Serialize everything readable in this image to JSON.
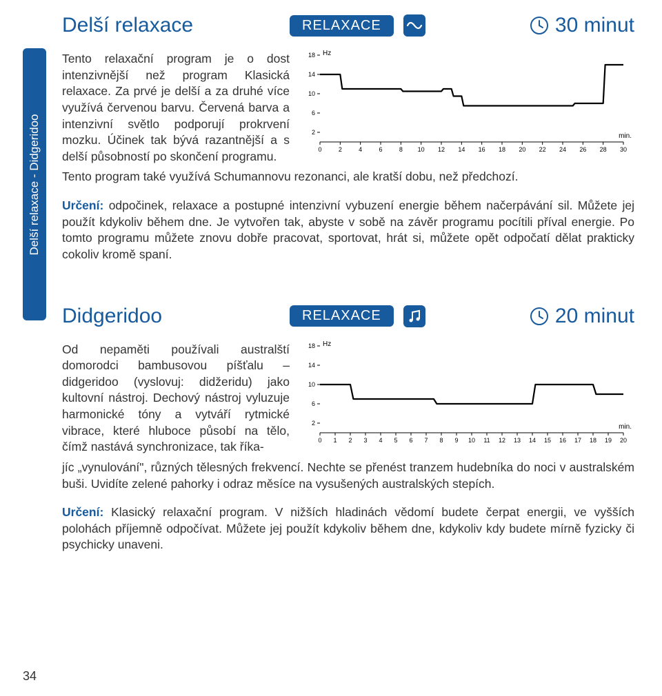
{
  "sideTab": "Delší relaxace - Didgeridoo",
  "pageNumber": "34",
  "colors": {
    "brand": "#175a9d",
    "text": "#333333",
    "chartLine": "#000000",
    "chartAxis": "#000000"
  },
  "program1": {
    "title": "Delší relaxace",
    "badge": "RELAXACE",
    "typeIcon": "wave-icon",
    "duration": "30 minut",
    "intro": "Tento relaxační program je o dost intenzivnější než program Klasická relaxace. Za prvé je delší a za druhé více využívá červenou barvu. Červená barva a intenzivní světlo podporují prokrvení mozku. Účinek tak bývá razantnější a s delší působností po skončení programu.",
    "flow": "Tento program také využívá Schumannovu rezonanci, ale kratší dobu, než předchozí.",
    "urceniLabel": "Určení:",
    "urceniText": " odpočinek, relaxace a postupné intenzivní vybuzení energie během načerpávání sil. Můžete jej použít kdykoliv během dne. Je vytvořen tak, abyste v sobě na závěr programu pocítili příval energie. Po tomto programu můžete znovu dobře pracovat, sportovat, hrát si, můžete opět odpočatí dělat prakticky cokoliv kromě spaní.",
    "chart": {
      "yLabel": "Hz",
      "xLabel": "min.",
      "yTicks": [
        2,
        6,
        10,
        14,
        18
      ],
      "yRange": [
        0,
        18
      ],
      "xTicks": [
        0,
        2,
        4,
        6,
        8,
        10,
        12,
        14,
        16,
        18,
        20,
        22,
        24,
        26,
        28,
        30
      ],
      "xRange": [
        0,
        30
      ],
      "points": [
        [
          0,
          14
        ],
        [
          2,
          14
        ],
        [
          2.2,
          11
        ],
        [
          8,
          11
        ],
        [
          8.2,
          10.5
        ],
        [
          12,
          10.5
        ],
        [
          12.2,
          11
        ],
        [
          13,
          11
        ],
        [
          13.2,
          9.5
        ],
        [
          14,
          9.5
        ],
        [
          14.2,
          7.5
        ],
        [
          25,
          7.5
        ],
        [
          25.2,
          8
        ],
        [
          28,
          8
        ],
        [
          28.2,
          16
        ],
        [
          30,
          16
        ]
      ],
      "lineColor": "#000000",
      "lineWidth": 2.2,
      "tickFont": 9
    }
  },
  "program2": {
    "title": "Didgeridoo",
    "badge": "RELAXACE",
    "typeIcon": "music-icon",
    "duration": "20 minut",
    "intro": "Od nepaměti používali australští domorodci bambusovou píšťalu – didgeridoo (vyslovuj: didžeridu) jako kultovní nástroj. Dechový nástroj vyluzuje harmonické tóny a vytváří rytmické vibrace, které hluboce působí na tělo, čímž nastává synchronizace, tak říka-",
    "flow": "jíc „vynulování\", různých tělesných frekvencí. Nechte se přenést tranzem hudebníka do noci v australském buši. Uvidíte zelené pahorky i odraz měsíce na vysušených australských stepích.",
    "urceniLabel": "Určení:",
    "urceniText": " Klasický relaxační program. V nižších hladinách vědomí budete čerpat energii, ve vyšších polohách příjemně odpočívat. Můžete jej použít kdykoliv během dne, kdykoliv kdy budete mírně fyzicky či psychicky unaveni.",
    "chart": {
      "yLabel": "Hz",
      "xLabel": "min.",
      "yTicks": [
        2,
        6,
        10,
        14,
        18
      ],
      "yRange": [
        0,
        18
      ],
      "xTicks": [
        0,
        1,
        2,
        3,
        4,
        5,
        6,
        7,
        8,
        9,
        10,
        11,
        12,
        13,
        14,
        15,
        16,
        17,
        18,
        19,
        20
      ],
      "xRange": [
        0,
        20
      ],
      "points": [
        [
          0,
          10
        ],
        [
          2,
          10
        ],
        [
          2.2,
          7
        ],
        [
          7.5,
          7
        ],
        [
          7.7,
          6
        ],
        [
          14,
          6
        ],
        [
          14.2,
          10
        ],
        [
          18,
          10
        ],
        [
          18.2,
          8
        ],
        [
          20,
          8
        ]
      ],
      "lineColor": "#000000",
      "lineWidth": 2.2,
      "tickFont": 9
    }
  }
}
